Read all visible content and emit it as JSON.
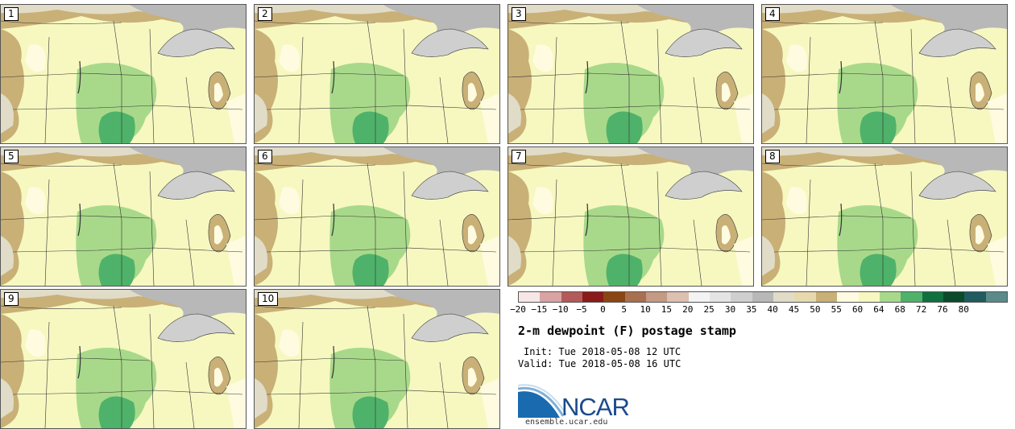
{
  "panels": [
    {
      "label": "1"
    },
    {
      "label": "2"
    },
    {
      "label": "3"
    },
    {
      "label": "4"
    },
    {
      "label": "5"
    },
    {
      "label": "6"
    },
    {
      "label": "7"
    },
    {
      "label": "8"
    },
    {
      "label": "9"
    },
    {
      "label": "10"
    }
  ],
  "legend": {
    "ticks": [
      "−20",
      "−15",
      "−10",
      "−5",
      "0",
      "5",
      "10",
      "15",
      "20",
      "25",
      "30",
      "35",
      "40",
      "45",
      "50",
      "55",
      "60",
      "64",
      "68",
      "72",
      "76",
      "80"
    ],
    "colors": [
      "#f7e6e6",
      "#d9a3a3",
      "#b35a5a",
      "#8b1a1a",
      "#8b4513",
      "#a87050",
      "#c49a85",
      "#dcc0b0",
      "#f3f3f3",
      "#e4e4e4",
      "#cfcfcf",
      "#b8b8b8",
      "#e0dcc8",
      "#e6d9ae",
      "#c9b077",
      "#fffbe1",
      "#f6f8c0",
      "#a8d98a",
      "#4fb26a",
      "#107040",
      "#0b4a2a",
      "#1f5b5f",
      "#5b8a8a"
    ]
  },
  "title": "2-m dewpoint (F) postage stamp",
  "init": "Init: Tue 2018-05-08 12 UTC",
  "valid": "Valid: Tue 2018-05-08 16 UTC",
  "brand": {
    "name": "NCAR",
    "url": "ensemble.ucar.edu"
  }
}
